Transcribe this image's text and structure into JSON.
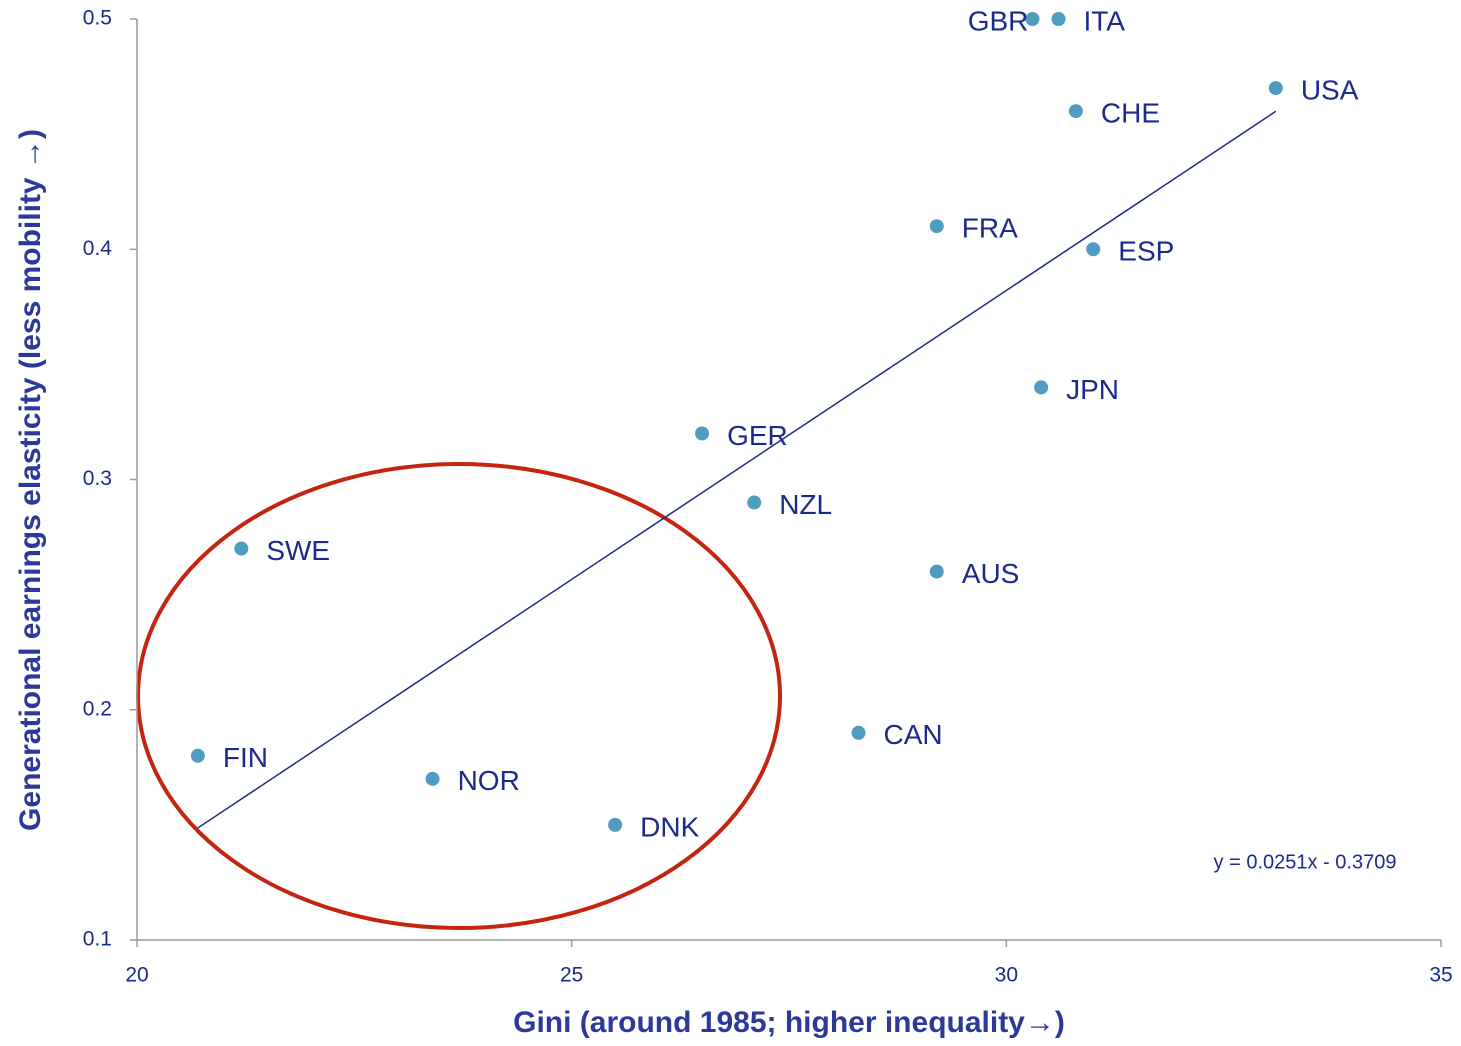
{
  "chart_data": {
    "type": "scatter",
    "x_label": "Gini (around 1985; higher inequality→)",
    "y_label": "Generational earnings elasticity (less mobility →)",
    "labels": [
      "GBR",
      "ITA",
      "USA",
      "CHE",
      "FRA",
      "ESP",
      "JPN",
      "GER",
      "NZL",
      "AUS",
      "CAN",
      "SWE",
      "FIN",
      "NOR",
      "DNK"
    ],
    "x": [
      30.3,
      30.6,
      33.1,
      30.8,
      29.2,
      31.0,
      30.4,
      26.5,
      27.1,
      29.2,
      28.3,
      21.2,
      20.7,
      23.4,
      25.5
    ],
    "values": [
      0.5,
      0.5,
      0.47,
      0.46,
      0.41,
      0.4,
      0.34,
      0.32,
      0.29,
      0.26,
      0.19,
      0.27,
      0.18,
      0.17,
      0.15
    ],
    "color": "#4f9cc0",
    "trendline": {
      "slope": 0.0251,
      "intercept": -0.3709,
      "label": "y = 0.0251x - 0.3709",
      "color": "#1c2a8c"
    },
    "xlim": [
      20,
      35
    ],
    "xticks": [
      20,
      25,
      30,
      35
    ],
    "ylim": [
      0.1,
      0.5
    ],
    "yticks": [
      0.1,
      0.2,
      0.3,
      0.4,
      0.5
    ],
    "grid": false
  }
}
